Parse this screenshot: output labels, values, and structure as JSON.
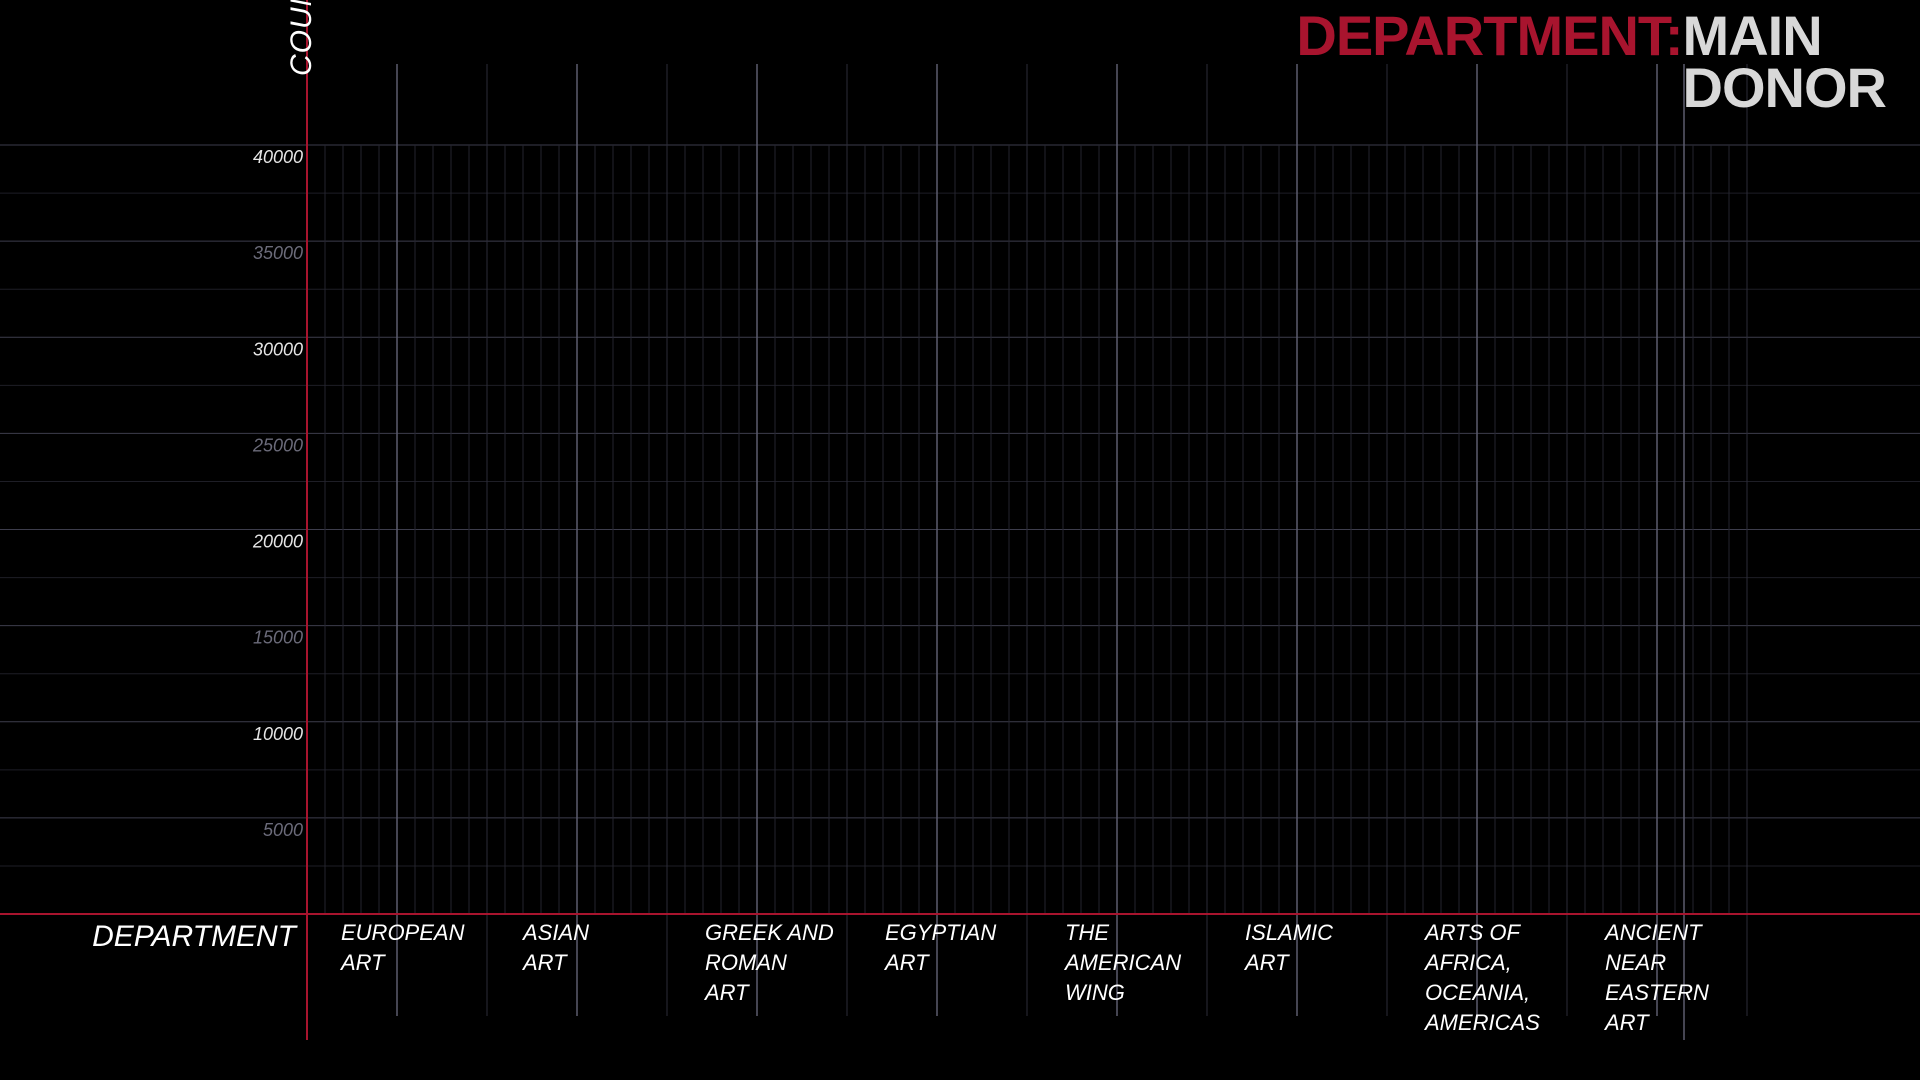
{
  "title": {
    "prefix": "DEPARTMENT:",
    "line1": "MAIN",
    "line2": "DONOR"
  },
  "colors": {
    "background": "#000000",
    "accent": "#a8142e",
    "title_text": "#d8d8d8",
    "grid": "#3a3a4a",
    "text": "#ffffff"
  },
  "chart_data": {
    "type": "bar",
    "xlabel": "DEPARTMENT",
    "ylabel": "COUNTS",
    "ylim": [
      0,
      40000
    ],
    "yticks": [
      5000,
      10000,
      15000,
      20000,
      25000,
      30000,
      35000,
      40000
    ],
    "grid": true,
    "categories": [
      [
        "EUROPEAN",
        "ART"
      ],
      [
        "ASIAN",
        "ART"
      ],
      [
        "GREEK AND",
        "ROMAN",
        "ART"
      ],
      [
        "EGYPTIAN",
        "ART"
      ],
      [
        "THE",
        "AMERICAN",
        "WING"
      ],
      [
        "ISLAMIC",
        "ART"
      ],
      [
        "ARTS OF",
        "AFRICA,",
        "OCEANIA,",
        "AMERICAS"
      ],
      [
        "ANCIENT",
        "NEAR",
        "EASTERN",
        "ART"
      ]
    ],
    "values": [
      0,
      0,
      0,
      0,
      0,
      0,
      0,
      0
    ]
  }
}
